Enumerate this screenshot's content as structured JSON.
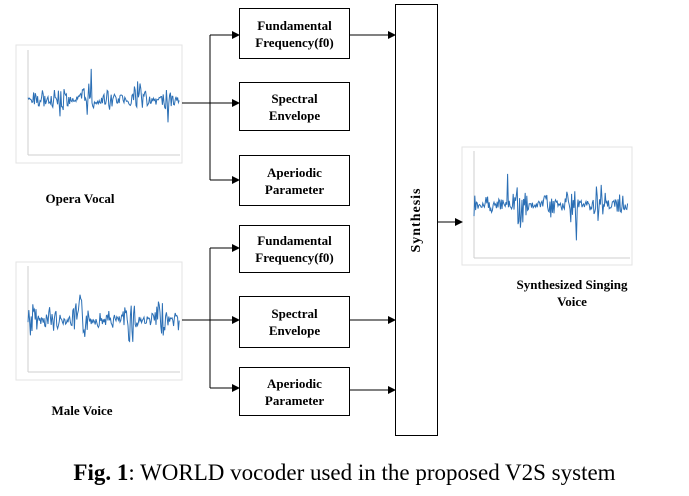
{
  "inputs": [
    {
      "label": "Opera Vocal",
      "features": [
        [
          "Fundamental",
          "Frequency(f0)"
        ],
        [
          "Spectral",
          "Envelope"
        ],
        [
          "Aperiodic",
          "Parameter"
        ]
      ]
    },
    {
      "label": "Male Voice",
      "features": [
        [
          "Fundamental",
          "Frequency(f0)"
        ],
        [
          "Spectral",
          "Envelope"
        ],
        [
          "Aperiodic",
          "Parameter"
        ]
      ]
    }
  ],
  "synthesis_label": "Synthesis",
  "output_label": [
    "Synthesized Singing",
    "Voice"
  ],
  "caption": {
    "prefix": "Fig. 1",
    "text": ": WORLD vocoder used in the proposed V2S system"
  },
  "colors": {
    "waveform": "#2b6fb5",
    "line": "#000000"
  }
}
